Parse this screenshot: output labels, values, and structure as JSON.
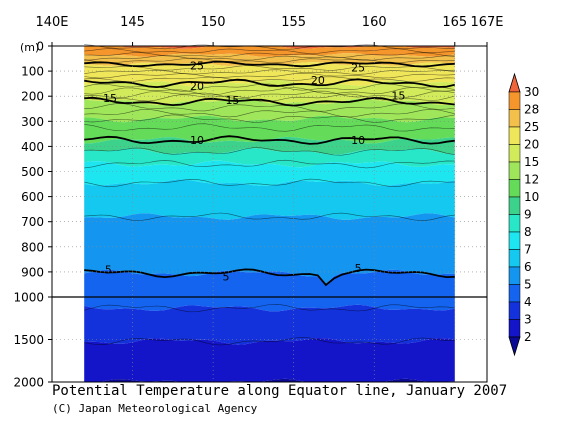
{
  "chart_data": {
    "type": "heatmap",
    "title": "Potential Temperature along Equator line, January 2007",
    "credit": "(C) Japan Meteorological Agency",
    "ylabel": "(m)",
    "x_tick_labels": [
      "140E",
      "145",
      "150",
      "155",
      "160",
      "165",
      "167E"
    ],
    "x_ticks": [
      140,
      145,
      150,
      155,
      160,
      165,
      167
    ],
    "x_range": [
      140,
      167
    ],
    "data_x_range": [
      142,
      165
    ],
    "y_upper_ticks": [
      0,
      100,
      200,
      300,
      400,
      500,
      600,
      700,
      800,
      900,
      1000
    ],
    "y_lower_ticks": [
      1000,
      1500,
      2000
    ],
    "y_range": [
      0,
      2000
    ],
    "colorbar": {
      "labels": [
        30,
        28,
        25,
        20,
        15,
        12,
        10,
        9,
        8,
        7,
        6,
        5,
        4,
        3,
        2
      ],
      "colors": [
        "#f0643c",
        "#f5962c",
        "#f2c04b",
        "#f0e65a",
        "#d2eb5a",
        "#a0e65a",
        "#64dc5a",
        "#3cd28c",
        "#28e6c8",
        "#1ee6f0",
        "#14c8f0",
        "#1496f0",
        "#1464f0",
        "#1432dc",
        "#1414c8",
        "#0a0a96"
      ]
    },
    "contours": {
      "bold_levels": [
        25,
        20,
        15,
        10,
        5
      ],
      "thin_levels": [
        30,
        29,
        28,
        27,
        26,
        24,
        23,
        22,
        21,
        19,
        18,
        17,
        16,
        14,
        13,
        12,
        11,
        9,
        8,
        7,
        6,
        4,
        3
      ],
      "inline_labels": [
        {
          "text": "25",
          "x": 149.0,
          "depth": 78
        },
        {
          "text": "25",
          "x": 159.0,
          "depth": 86
        },
        {
          "text": "20",
          "x": 149.0,
          "depth": 159
        },
        {
          "text": "20",
          "x": 156.5,
          "depth": 135
        },
        {
          "text": "15",
          "x": 143.6,
          "depth": 208
        },
        {
          "text": "15",
          "x": 151.2,
          "depth": 215
        },
        {
          "text": "15",
          "x": 161.5,
          "depth": 198
        },
        {
          "text": "10",
          "x": 149.0,
          "depth": 375
        },
        {
          "text": "10",
          "x": 159.0,
          "depth": 375
        },
        {
          "text": "5",
          "x": 143.5,
          "depth": 890
        },
        {
          "text": "5",
          "x": 150.8,
          "depth": 918
        },
        {
          "text": "5",
          "x": 159.0,
          "depth": 885
        }
      ]
    }
  }
}
